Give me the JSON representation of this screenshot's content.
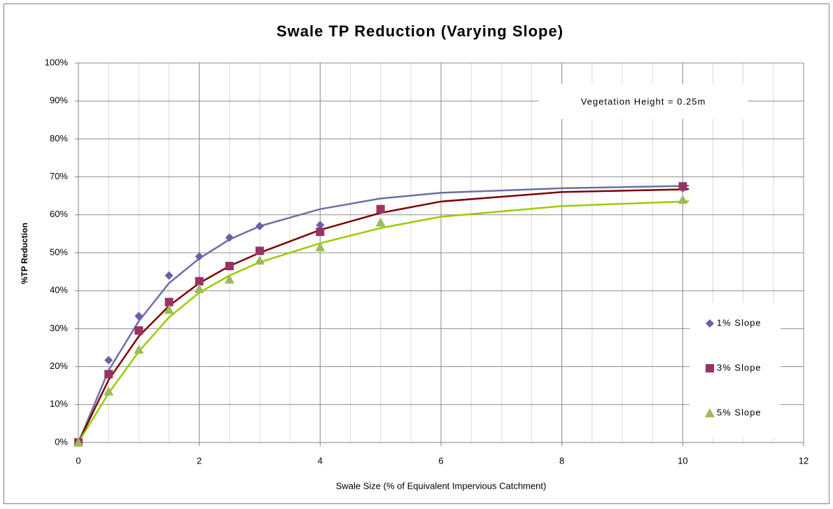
{
  "chart_data": {
    "type": "scatter",
    "title": "Swale TP Reduction (Varying Slope)",
    "x_label": "Swale Size (% of Equivalent Impervious Catchment)",
    "y_label": "%TP Reduction",
    "annotation": "Vegetation Height =  0.25m",
    "xlim": [
      0,
      12
    ],
    "xticks": [
      0,
      2,
      4,
      6,
      8,
      10,
      12
    ],
    "ylim": [
      0,
      100
    ],
    "yticks": [
      {
        "value": 0,
        "label": "0%"
      },
      {
        "value": 10,
        "label": "10%"
      },
      {
        "value": 20,
        "label": "20%"
      },
      {
        "value": 30,
        "label": "30%"
      },
      {
        "value": 40,
        "label": "40%"
      },
      {
        "value": 50,
        "label": "50%"
      },
      {
        "value": 60,
        "label": "60%"
      },
      {
        "value": 70,
        "label": "70%"
      },
      {
        "value": 80,
        "label": "80%"
      },
      {
        "value": 90,
        "label": "90%"
      },
      {
        "value": 100,
        "label": "100%"
      }
    ],
    "grid": true,
    "minor_x_step": 0.5,
    "legend": "right",
    "series": [
      {
        "name": "1% Slope",
        "marker": "diamond",
        "color": "#6a6fa6",
        "marker_color": "#6a5fa8",
        "x": [
          0,
          0.5,
          1,
          1.5,
          2,
          2.5,
          3,
          4,
          10
        ],
        "values": [
          0,
          21.7,
          33.3,
          44,
          49,
          54,
          57,
          57.3,
          67
        ],
        "trend_x": [
          0,
          0.5,
          1,
          1.5,
          2,
          2.5,
          3,
          4,
          5,
          6,
          8,
          10,
          10.1
        ],
        "trend_values": [
          0,
          19,
          32,
          42,
          48.5,
          53.5,
          57,
          61.5,
          64.3,
          65.8,
          67,
          67.6,
          67.7
        ]
      },
      {
        "name": "3% Slope",
        "marker": "square",
        "color": "#7f0000",
        "marker_color": "#993366",
        "x": [
          0,
          0.5,
          1,
          1.5,
          2,
          2.5,
          3,
          4,
          5,
          10
        ],
        "values": [
          0,
          18,
          29.5,
          37,
          42.5,
          46.5,
          50.5,
          55.5,
          61.5,
          67.5
        ],
        "trend_x": [
          0,
          0.5,
          1,
          1.5,
          2,
          2.5,
          3,
          4,
          5,
          6,
          8,
          10,
          10.1
        ],
        "trend_values": [
          0,
          16.5,
          28,
          36,
          42,
          46.5,
          50,
          56,
          60.5,
          63.5,
          66,
          66.7,
          66.8
        ]
      },
      {
        "name": "5% Slope",
        "marker": "triangle",
        "color": "#99cc00",
        "marker_color": "#9bbb59",
        "x": [
          0,
          0.5,
          1,
          1.5,
          2,
          2.5,
          3,
          4,
          5,
          10
        ],
        "values": [
          0,
          13.5,
          24.5,
          35,
          40.5,
          43,
          48,
          51.5,
          58,
          64
        ],
        "trend_x": [
          0,
          0.5,
          1,
          1.5,
          2,
          2.5,
          3,
          4,
          5,
          6,
          8,
          10,
          10.1
        ],
        "trend_values": [
          0,
          13,
          24,
          33,
          39.5,
          44,
          47.5,
          52.5,
          56.5,
          59.5,
          62.3,
          63.5,
          63.6
        ]
      }
    ]
  }
}
